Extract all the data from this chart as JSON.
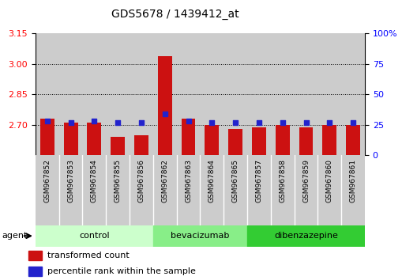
{
  "title": "GDS5678 / 1439412_at",
  "samples": [
    "GSM967852",
    "GSM967853",
    "GSM967854",
    "GSM967855",
    "GSM967856",
    "GSM967862",
    "GSM967863",
    "GSM967864",
    "GSM967865",
    "GSM967857",
    "GSM967858",
    "GSM967859",
    "GSM967860",
    "GSM967861"
  ],
  "transformed_count": [
    2.73,
    2.71,
    2.71,
    2.64,
    2.65,
    3.04,
    2.73,
    2.7,
    2.68,
    2.69,
    2.7,
    2.69,
    2.7,
    2.7
  ],
  "percentile_rank": [
    28,
    27,
    28,
    27,
    27,
    34,
    28,
    27,
    27,
    27,
    27,
    27,
    27,
    27
  ],
  "groups": [
    {
      "label": "control",
      "start": 0,
      "end": 5,
      "color": "#ccffcc"
    },
    {
      "label": "bevacizumab",
      "start": 5,
      "end": 9,
      "color": "#88ee88"
    },
    {
      "label": "dibenzazepine",
      "start": 9,
      "end": 14,
      "color": "#33cc33"
    }
  ],
  "ylim_left": [
    2.55,
    3.15
  ],
  "ylim_right": [
    0,
    100
  ],
  "yticks_left": [
    2.7,
    2.85,
    3.0,
    3.15
  ],
  "yticks_right": [
    0,
    25,
    50,
    75,
    100
  ],
  "bar_color": "#cc1111",
  "dot_color": "#2222cc",
  "plot_bg": "#ffffff",
  "col_bg": "#cccccc",
  "legend_bar": "transformed count",
  "legend_dot": "percentile rank within the sample"
}
